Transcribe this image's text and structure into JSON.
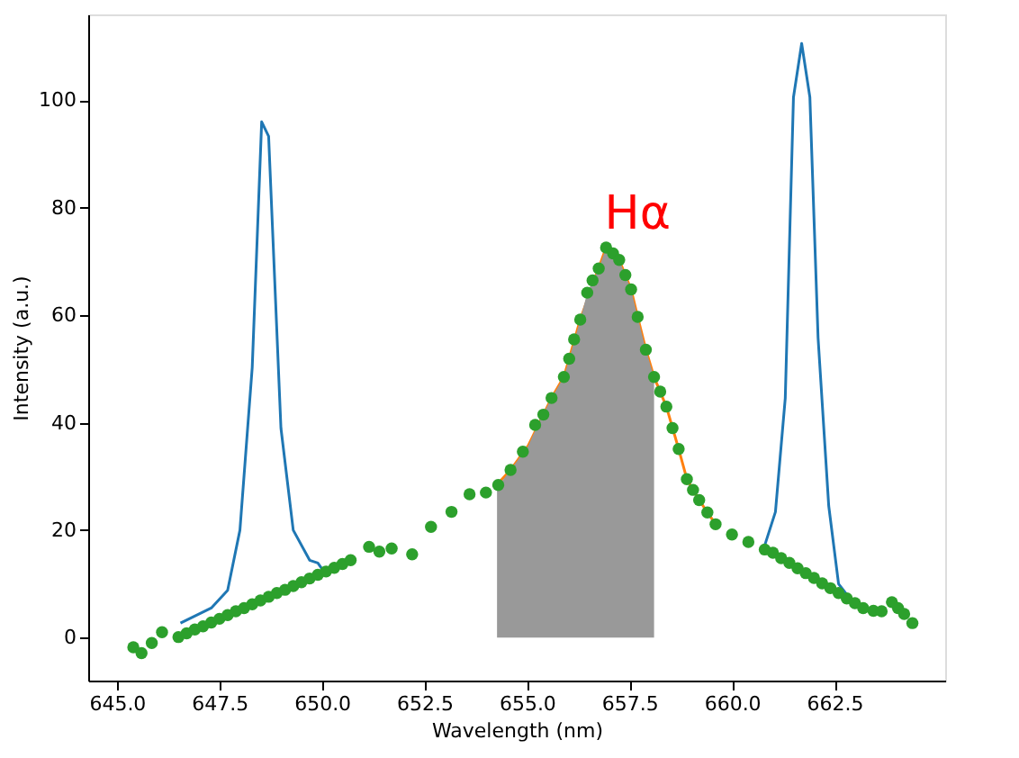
{
  "chart_data": {
    "type": "line",
    "xlabel": "Wavelength (nm)",
    "ylabel": "Intensity (a.u.)",
    "xlim": [
      644.3,
      665.2
    ],
    "ylim": [
      -8,
      116
    ],
    "xticks": [
      {
        "value": 645,
        "label": "645.0"
      },
      {
        "value": 647.5,
        "label": "647.5"
      },
      {
        "value": 650,
        "label": "650.0"
      },
      {
        "value": 652.5,
        "label": "652.5"
      },
      {
        "value": 655,
        "label": "655.0"
      },
      {
        "value": 657.5,
        "label": "657.5"
      },
      {
        "value": 660,
        "label": "660.0"
      },
      {
        "value": 662.5,
        "label": "662.5"
      }
    ],
    "yticks": [
      0,
      20,
      40,
      60,
      80,
      100
    ],
    "grid": false,
    "legend": false,
    "annotations": [
      "Hα"
    ],
    "series": [
      {
        "color": "#1f77b4",
        "line_style": "solid",
        "x": [
          646.55,
          647.3,
          647.7,
          648.0,
          648.3,
          648.53,
          648.7,
          649.0,
          649.3,
          649.7,
          649.9,
          650.0,
          655.0,
          660.8,
          661.06,
          661.3,
          661.5,
          661.7,
          661.9,
          662.1,
          662.36,
          662.6,
          662.8
        ],
        "values": [
          2.7,
          5.5,
          8.8,
          20,
          50.3,
          96,
          93.3,
          39,
          20,
          14.4,
          13.9,
          12.8,
          null,
          17.2,
          23.4,
          44.6,
          100.6,
          110.6,
          100.6,
          55.8,
          24.5,
          10.0,
          8.0
        ]
      },
      {
        "color": "#ff7f0e",
        "line_style": "solid",
        "x": [
          654.2,
          654.6,
          655.03,
          655.6,
          655.9,
          656.03,
          656.3,
          656.93,
          657.25,
          657.54,
          657.7,
          657.9,
          658.1,
          658.4,
          658.7,
          658.9,
          659.2,
          659.6
        ],
        "values": [
          27.9,
          31.2,
          35.7,
          44.6,
          48.5,
          51.9,
          59.2,
          72.6,
          70.3,
          64.8,
          59.7,
          53.6,
          48.5,
          43.0,
          35.1,
          29.5,
          25.6,
          21.1
        ]
      },
      {
        "type": "area",
        "color": "#999999",
        "x": [
          654.27,
          654.6,
          655.03,
          655.3,
          655.6,
          655.9,
          656.03,
          656.3,
          656.47,
          656.75,
          656.93,
          657.25,
          657.54,
          657.7,
          657.9,
          658.1
        ],
        "values": [
          27.9,
          31.2,
          35.7,
          40.2,
          44.6,
          48.5,
          51.9,
          59.2,
          64.2,
          68.7,
          72.6,
          70.3,
          64.8,
          59.7,
          53.6,
          48.5
        ]
      },
      {
        "type": "scatter",
        "color": "#2ca02c",
        "marker": "circle",
        "x": [
          645.4,
          645.6,
          645.85,
          646.1,
          646.5,
          646.7,
          646.9,
          647.1,
          647.3,
          647.5,
          647.7,
          647.9,
          648.1,
          648.3,
          648.5,
          648.7,
          648.9,
          649.1,
          649.3,
          649.5,
          649.7,
          649.9,
          650.1,
          650.3,
          650.5,
          650.7,
          651.15,
          651.4,
          651.7,
          652.2,
          652.66,
          653.16,
          653.6,
          654.0,
          654.3,
          654.6,
          654.9,
          655.2,
          655.4,
          655.6,
          655.9,
          656.03,
          656.15,
          656.3,
          656.47,
          656.6,
          656.75,
          656.93,
          657.1,
          657.25,
          657.4,
          657.54,
          657.7,
          657.9,
          658.1,
          658.25,
          658.4,
          658.55,
          658.7,
          658.9,
          659.05,
          659.2,
          659.4,
          659.6,
          660.0,
          660.4,
          660.8,
          661.0,
          661.2,
          661.4,
          661.6,
          661.8,
          662.0,
          662.2,
          662.4,
          662.6,
          662.8,
          663.0,
          663.2,
          663.45,
          663.65,
          663.9,
          664.05,
          664.2,
          664.4
        ],
        "values": [
          -1.8,
          -2.9,
          -1.0,
          1.0,
          0.1,
          0.8,
          1.5,
          2.1,
          2.8,
          3.5,
          4.2,
          4.9,
          5.5,
          6.2,
          6.9,
          7.6,
          8.3,
          8.9,
          9.6,
          10.3,
          11.0,
          11.7,
          12.3,
          13.0,
          13.7,
          14.4,
          16.9,
          16.0,
          16.6,
          15.5,
          20.6,
          23.4,
          26.7,
          27.0,
          28.4,
          31.2,
          34.6,
          39.6,
          41.5,
          44.6,
          48.5,
          51.9,
          55.5,
          59.2,
          64.2,
          66.5,
          68.7,
          72.6,
          71.5,
          70.3,
          67.5,
          64.8,
          59.7,
          53.6,
          48.5,
          45.8,
          43.0,
          39.0,
          35.1,
          29.5,
          27.5,
          25.6,
          23.3,
          21.1,
          19.2,
          17.8,
          16.4,
          15.8,
          14.8,
          13.9,
          12.9,
          12.0,
          11.1,
          10.1,
          9.2,
          8.3,
          7.3,
          6.4,
          5.5,
          5.0,
          4.9,
          6.6,
          5.5,
          4.4,
          2.7
        ]
      }
    ]
  }
}
